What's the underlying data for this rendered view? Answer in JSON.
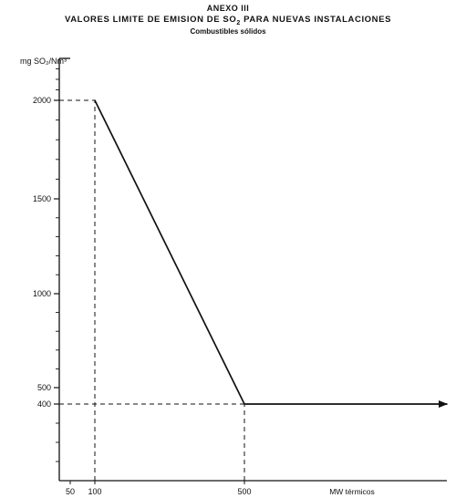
{
  "header": {
    "annex": "ANEXO III",
    "title_main": "VALORES LIMITE DE EMISION DE SO",
    "title_sub": "2",
    "title_rest": " PARA NUEVAS INSTALACIONES",
    "subtitle": "Combustibles sólidos"
  },
  "chart_data": {
    "type": "line",
    "ylabel": "mg SO₂/Nm³",
    "xlabel": "MW térmicos",
    "xlim": [
      0,
      700
    ],
    "ylim": [
      0,
      2400
    ],
    "x_ticks": [
      50,
      100,
      500
    ],
    "y_ticks": [
      2000,
      1500,
      1000,
      500,
      400
    ],
    "series": [
      {
        "values": [
          [
            100,
            2000
          ],
          [
            500,
            400
          ],
          [
            700,
            400
          ]
        ]
      }
    ],
    "reference_lines": [
      {
        "axis": "y",
        "value": 2000,
        "from_x": 0,
        "to_x": 100
      },
      {
        "axis": "x",
        "value": 100,
        "from_y": 0,
        "to_y": 2000
      },
      {
        "axis": "y",
        "value": 400,
        "from_x": 0,
        "to_x": 500
      },
      {
        "axis": "x",
        "value": 500,
        "from_y": 0,
        "to_y": 400
      }
    ],
    "grid": false,
    "legend": "none"
  },
  "colors": {
    "ink": "#111111"
  }
}
